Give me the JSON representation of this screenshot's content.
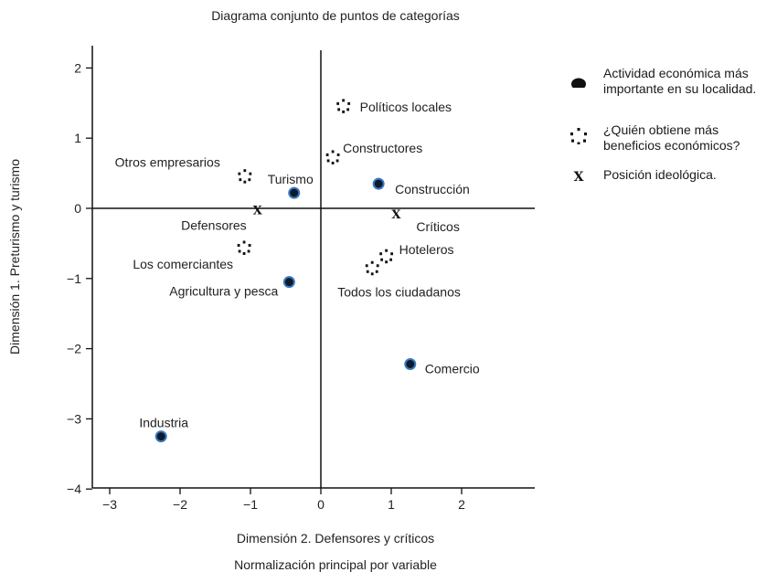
{
  "chart_data": {
    "type": "scatter",
    "title": "Diagrama conjunto de puntos de categorías",
    "xlabel": "Dimensión 2. Defensores y críticos",
    "xlabel2": "Normalización principal por variable",
    "ylabel": "Dimensión 1. Preturismo y turismo",
    "xlim": [
      -3.4,
      3.0
    ],
    "ylim": [
      -4.0,
      2.3
    ],
    "xticks": [
      -3,
      -2,
      -1,
      0,
      1,
      2
    ],
    "xtick_labels": [
      "−3",
      "−2",
      "−1",
      "0",
      "1",
      "2"
    ],
    "yticks": [
      2,
      1,
      0,
      -1,
      -2,
      -3,
      -4
    ],
    "ytick_labels": [
      "2",
      "1",
      "0",
      "−1",
      "−2",
      "−3",
      "−4"
    ],
    "grid": false,
    "legend_position": "right",
    "series": [
      {
        "name": "Actividad económica más importante en su localidad.",
        "marker": "filled-circle",
        "points": [
          {
            "label": "Turismo",
            "x": -0.38,
            "y": 0.22
          },
          {
            "label": "Construcción",
            "x": 0.82,
            "y": 0.35
          },
          {
            "label": "Agricultura y pesca",
            "x": -0.45,
            "y": -1.05
          },
          {
            "label": "Comercio",
            "x": 1.27,
            "y": -2.22
          },
          {
            "label": "Industria",
            "x": -2.27,
            "y": -3.25
          }
        ]
      },
      {
        "name": "¿Quién obtiene más beneficios económicos?",
        "marker": "dotted-circle",
        "points": [
          {
            "label": "Políticos locales",
            "x": 0.32,
            "y": 1.46
          },
          {
            "label": "Constructores",
            "x": 0.17,
            "y": 0.73
          },
          {
            "label": "Otros empresarios",
            "x": -1.08,
            "y": 0.46
          },
          {
            "label": "Los comerciantes",
            "x": -1.09,
            "y": -0.56
          },
          {
            "label": "Hoteleros",
            "x": 0.93,
            "y": -0.68
          },
          {
            "label": "Todos los ciudadanos",
            "x": 0.73,
            "y": -0.85
          }
        ]
      },
      {
        "name": "Posición ideológica.",
        "marker": "x",
        "points": [
          {
            "label": "Defensores",
            "x": -0.9,
            "y": -0.02
          },
          {
            "label": "Críticos",
            "x": 1.07,
            "y": -0.08
          }
        ]
      }
    ]
  }
}
